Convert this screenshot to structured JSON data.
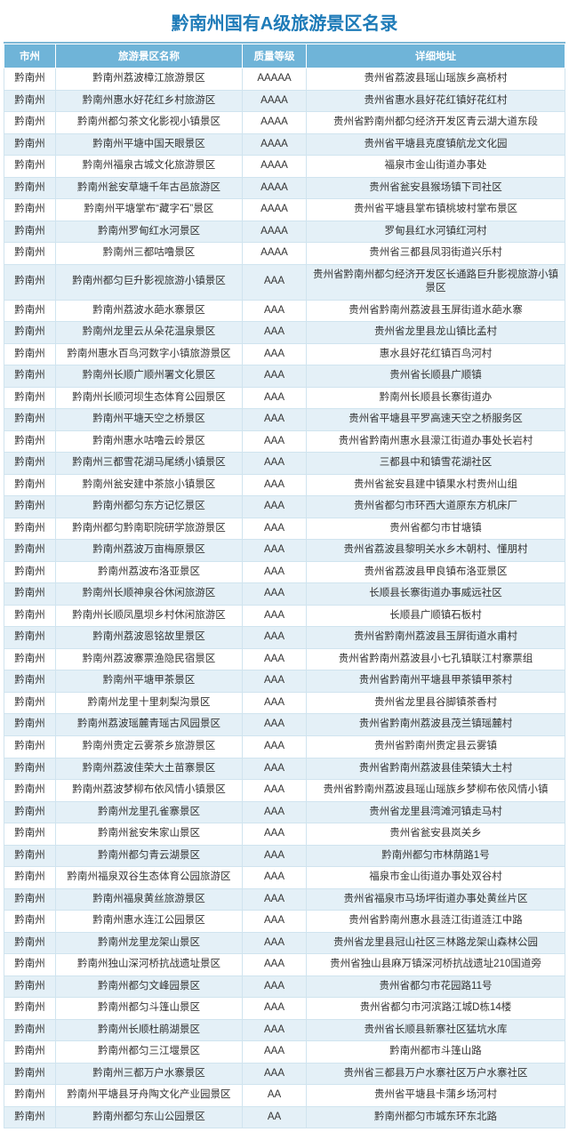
{
  "title": "黔南州国有A级旅游景区名录",
  "columns": [
    "市州",
    "旅游景区名称",
    "质量等级",
    "详细地址"
  ],
  "header_bg": "#6fb4d8",
  "header_fg": "#ffffff",
  "row_bg_even": "#ffffff",
  "row_bg_odd": "#e4f0f7",
  "title_color": "#1e7bb8",
  "border_color": "#d0e4ef",
  "font_size_title": 20,
  "font_size_body": 11.5,
  "rows": [
    [
      "黔南州",
      "黔南州荔波樟江旅游景区",
      "AAAAA",
      "贵州省荔波县瑶山瑶族乡高桥村"
    ],
    [
      "黔南州",
      "黔南州惠水好花红乡村旅游区",
      "AAAA",
      "贵州省惠水县好花红镇好花红村"
    ],
    [
      "黔南州",
      "黔南州都匀茶文化影视小镇景区",
      "AAAA",
      "贵州省黔南州都匀经济开发区青云湖大道东段"
    ],
    [
      "黔南州",
      "黔南州平塘中国天眼景区",
      "AAAA",
      "贵州省平塘县克度镇航龙文化园"
    ],
    [
      "黔南州",
      "黔南州福泉古城文化旅游景区",
      "AAAA",
      "福泉市金山街道办事处"
    ],
    [
      "黔南州",
      "黔南州瓮安草塘千年古邑旅游区",
      "AAAA",
      "贵州省瓮安县猴场镇下司社区"
    ],
    [
      "黔南州",
      "黔南州平塘掌布“藏字石”景区",
      "AAAA",
      "贵州省平塘县掌布镇桃坡村掌布景区"
    ],
    [
      "黔南州",
      "黔南州罗甸红水河景区",
      "AAAA",
      "罗甸县红水河镇红河村"
    ],
    [
      "黔南州",
      "黔南州三都咕噜景区",
      "AAAA",
      "贵州省三都县凤羽街道兴乐村"
    ],
    [
      "黔南州",
      "黔南州都匀巨升影视旅游小镇景区",
      "AAA",
      "贵州省黔南州都匀经济开发区长通路巨升影视旅游小镇景区"
    ],
    [
      "黔南州",
      "黔南州荔波水葩水寨景区",
      "AAA",
      "贵州省黔南州荔波县玉屏街道水葩水寨"
    ],
    [
      "黔南州",
      "黔南州龙里云从朵花温泉景区",
      "AAA",
      "贵州省龙里县龙山镇比孟村"
    ],
    [
      "黔南州",
      "黔南州惠水百鸟河数字小镇旅游景区",
      "AAA",
      "惠水县好花红镇百鸟河村"
    ],
    [
      "黔南州",
      "黔南州长顺广顺州署文化景区",
      "AAA",
      "贵州省长顺县广顺镇"
    ],
    [
      "黔南州",
      "黔南州长顺河坝生态体育公园景区",
      "AAA",
      "黔南州长顺县长寨街道办"
    ],
    [
      "黔南州",
      "黔南州平塘天空之桥景区",
      "AAA",
      "贵州省平塘县平罗高速天空之桥服务区"
    ],
    [
      "黔南州",
      "黔南州惠水咕噜云岭景区",
      "AAA",
      "贵州省黔南州惠水县濛江街道办事处长岩村"
    ],
    [
      "黔南州",
      "黔南州三都雪花湖马尾绣小镇景区",
      "AAA",
      "三都县中和镇雪花湖社区"
    ],
    [
      "黔南州",
      "黔南州瓮安建中茶旅小镇景区",
      "AAA",
      "贵州省瓮安县建中镇果水村贵州山组"
    ],
    [
      "黔南州",
      "黔南州都匀东方记忆景区",
      "AAA",
      "贵州省都匀市环西大道原东方机床厂"
    ],
    [
      "黔南州",
      "黔南州都匀黔南职院研学旅游景区",
      "AAA",
      "贵州省都匀市甘塘镇"
    ],
    [
      "黔南州",
      "黔南州荔波万亩梅原景区",
      "AAA",
      "贵州省荔波县黎明关水乡木朝村、懂朋村"
    ],
    [
      "黔南州",
      "黔南州荔波布洛亚景区",
      "AAA",
      "贵州省荔波县甲良镇布洛亚景区"
    ],
    [
      "黔南州",
      "黔南州长顺神泉谷休闲旅游区",
      "AAA",
      "长顺县长寨街道办事威远社区"
    ],
    [
      "黔南州",
      "黔南州长顺凤凰坝乡村休闲旅游区",
      "AAA",
      "长顺县广顺镇石板村"
    ],
    [
      "黔南州",
      "黔南州荔波恩铭故里景区",
      "AAA",
      "贵州省黔南州荔波县玉屏街道水甫村"
    ],
    [
      "黔南州",
      "黔南州荔波寨票渔隐民宿景区",
      "AAA",
      "贵州省黔南州荔波县小七孔镇联江村寨票组"
    ],
    [
      "黔南州",
      "黔南州平塘甲茶景区",
      "AAA",
      "贵州省黔南州平塘县甲茶镇甲茶村"
    ],
    [
      "黔南州",
      "黔南州龙里十里刺梨沟景区",
      "AAA",
      "贵州省龙里县谷脚镇茶香村"
    ],
    [
      "黔南州",
      "黔南州荔波瑶麓青瑶古风园景区",
      "AAA",
      "贵州省黔南州荔波县茂兰镇瑶麓村"
    ],
    [
      "黔南州",
      "黔南州贵定云雾茶乡旅游景区",
      "AAA",
      "贵州省黔南州贵定县云雾镇"
    ],
    [
      "黔南州",
      "黔南州荔波佳荣大土苗寨景区",
      "AAA",
      "贵州省黔南州荔波县佳荣镇大土村"
    ],
    [
      "黔南州",
      "黔南州荔波梦柳布依风情小镇景区",
      "AAA",
      "贵州省黔南州荔波县瑶山瑶族乡梦柳布依风情小镇"
    ],
    [
      "黔南州",
      "黔南州龙里孔雀寨景区",
      "AAA",
      "贵州省龙里县湾滩河镇走马村"
    ],
    [
      "黔南州",
      "黔南州瓮安朱家山景区",
      "AAA",
      "贵州省瓮安县岚关乡"
    ],
    [
      "黔南州",
      "黔南州都匀青云湖景区",
      "AAA",
      "黔南州都匀市林荫路1号"
    ],
    [
      "黔南州",
      "黔南州福泉双谷生态体育公园旅游区",
      "AAA",
      "福泉市金山街道办事处双谷村"
    ],
    [
      "黔南州",
      "黔南州福泉黄丝旅游景区",
      "AAA",
      "贵州省福泉市马场坪街道办事处黄丝片区"
    ],
    [
      "黔南州",
      "黔南州惠水连江公园景区",
      "AAA",
      "贵州省黔南州惠水县涟江街道涟江中路"
    ],
    [
      "黔南州",
      "黔南州龙里龙架山景区",
      "AAA",
      "贵州省龙里县冠山社区三林路龙架山森林公园"
    ],
    [
      "黔南州",
      "黔南州独山深河桥抗战遗址景区",
      "AAA",
      "贵州省独山县麻万镇深河桥抗战遗址210国道旁"
    ],
    [
      "黔南州",
      "黔南州都匀文峰园景区",
      "AAA",
      "贵州省都匀市花园路11号"
    ],
    [
      "黔南州",
      "黔南州都匀斗篷山景区",
      "AAA",
      "贵州省都匀市河滨路江城D栋14楼"
    ],
    [
      "黔南州",
      "黔南州长顺杜鹃湖景区",
      "AAA",
      "贵州省长顺县新寨社区猛坑水库"
    ],
    [
      "黔南州",
      "黔南州都匀三江堰景区",
      "AAA",
      "黔南州都市斗篷山路"
    ],
    [
      "黔南州",
      "黔南州三都万户水寨景区",
      "AAA",
      "贵州省三都县万户水寨社区万户水寨社区"
    ],
    [
      "黔南州",
      "黔南州平塘县牙舟陶文化产业园景区",
      "AA",
      "贵州省平塘县卡蒲乡场河村"
    ],
    [
      "黔南州",
      "黔南州都匀东山公园景区",
      "AA",
      "黔南州都匀市城东环东北路"
    ]
  ]
}
